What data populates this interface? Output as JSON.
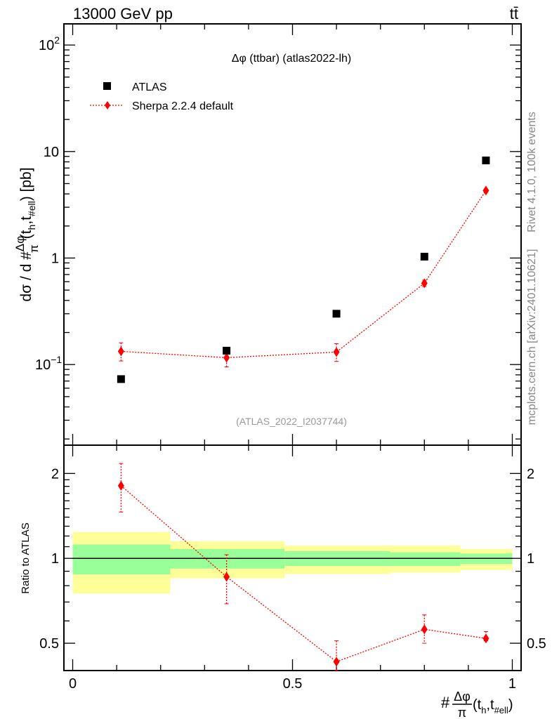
{
  "header": {
    "energy_label": "13000 GeV pp",
    "process_label": "tt̄"
  },
  "side_text": {
    "rivet": "Rivet 4.1.0,  100k events",
    "source": "mcplots.cern.ch [arXiv:2401.10621]"
  },
  "chart_data": [
    {
      "type": "scatter",
      "panel": "main",
      "title": "Δφ (ttbar) (atlas2022-lh)",
      "watermark": "(ATLAS_2022_I2037744)",
      "ylabel": {
        "main": "dσ / d #",
        "frac_num": "Δφ",
        "frac_den": "π",
        "args": "(t",
        "sub1": "h",
        "mid": ",t",
        "sub2": "#ell",
        "end": ") [pb]"
      },
      "yscale": "log",
      "ylim": [
        0.0175,
        158
      ],
      "xlim": [
        -0.02,
        1.02
      ],
      "ytick_labels": [
        {
          "value": 100,
          "label": "10",
          "sup": "2"
        },
        {
          "value": 10,
          "label": "10"
        },
        {
          "value": 1,
          "label": "1"
        },
        {
          "value": 0.1,
          "label": "10",
          "sup": "−1"
        }
      ],
      "legend": {
        "placement": "top-left",
        "entries": [
          "ATLAS",
          "Sherpa 2.2.4 default"
        ]
      },
      "x": [
        0.11,
        0.35,
        0.6,
        0.8,
        0.94
      ],
      "series": [
        {
          "name": "ATLAS",
          "color": "#000000",
          "marker": "square",
          "values": [
            0.073,
            0.135,
            0.3,
            1.03,
            8.25
          ]
        },
        {
          "name": "Sherpa 2.2.4 default",
          "color": "#ff0000",
          "marker": "diamond",
          "line": "dotted",
          "values": [
            0.133,
            0.116,
            0.131,
            0.58,
            4.3
          ],
          "err_low": [
            0.108,
            0.095,
            0.107,
            0.54,
            4.15
          ],
          "err_high": [
            0.16,
            0.141,
            0.157,
            0.62,
            4.45
          ]
        }
      ]
    },
    {
      "type": "scatter",
      "panel": "ratio",
      "ylabel": "Ratio to ATLAS",
      "xlabel": {
        "prefix": "#",
        "frac_num": "Δφ",
        "frac_den": "π",
        "args": "(t",
        "sub1": "h",
        "mid": ",t",
        "sub2": "#ell",
        "end": ")"
      },
      "yscale": "log",
      "ylim": [
        0.4,
        2.52
      ],
      "xlim": [
        -0.02,
        1.02
      ],
      "ytick_labels": [
        {
          "value": 0.5,
          "label": "0.5"
        },
        {
          "value": 1,
          "label": "1"
        },
        {
          "value": 2,
          "label": "2"
        }
      ],
      "xtick_labels": [
        {
          "value": 0,
          "label": "0"
        },
        {
          "value": 0.5,
          "label": "0.5"
        },
        {
          "value": 1,
          "label": "1"
        }
      ],
      "bin_edges": [
        0,
        0.222,
        0.482,
        0.722,
        0.882,
        1.0
      ],
      "band_outer": {
        "color": "#ffff99",
        "low": [
          0.75,
          0.85,
          0.88,
          0.89,
          0.91
        ],
        "high": [
          1.24,
          1.15,
          1.11,
          1.11,
          1.08
        ]
      },
      "band_inner": {
        "color": "#99ff99",
        "low": [
          0.877,
          0.92,
          0.94,
          0.94,
          0.955
        ],
        "high": [
          1.12,
          1.08,
          1.06,
          1.05,
          1.04
        ]
      },
      "x": [
        0.11,
        0.35,
        0.6,
        0.8,
        0.94
      ],
      "series": [
        {
          "name": "Sherpa 2.2.4 default",
          "color": "#ff0000",
          "values": [
            1.81,
            0.86,
            0.43,
            0.56,
            0.52
          ],
          "err_low": [
            1.46,
            0.69,
            0.4,
            0.5,
            0.51
          ],
          "err_high": [
            2.17,
            1.03,
            0.51,
            0.63,
            0.55
          ]
        }
      ]
    }
  ]
}
